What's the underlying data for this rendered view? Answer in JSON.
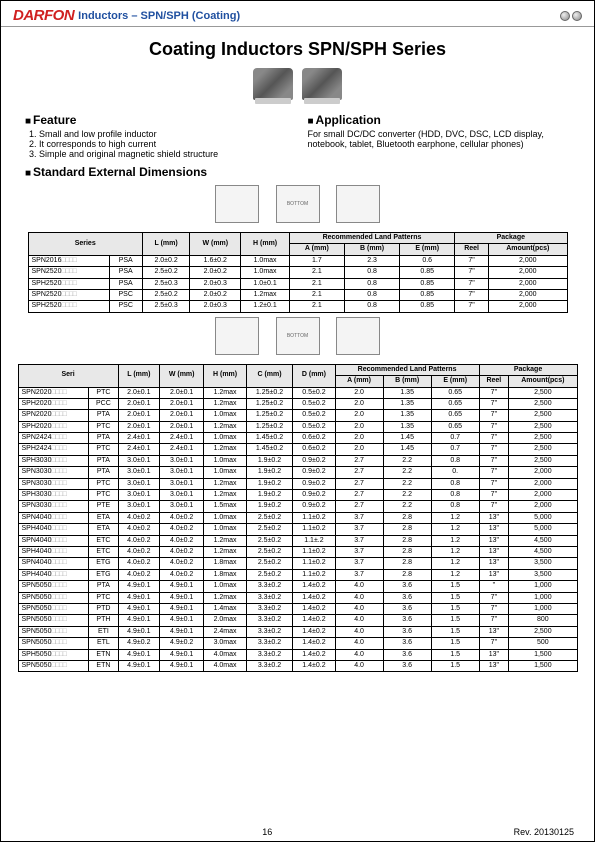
{
  "header": {
    "logo": "DARFON",
    "title": "Inductors – SPN/SPH (Coating)"
  },
  "mainTitle": "Coating Inductors SPN/SPH Series",
  "feature": {
    "heading": "Feature",
    "items": [
      "1. Small and low profile inductor",
      "2. It corresponds to high current",
      "3. Simple and original magnetic shield structure"
    ]
  },
  "application": {
    "heading": "Application",
    "text": "For small DC/DC converter (HDD, DVC, DSC, LCD display, notebook, tablet, Bluetooth earphone, cellular phones)"
  },
  "stdDim": "Standard External Dimensions",
  "table1": {
    "headerGroups": {
      "series": "Series",
      "l": "L\n(mm)",
      "w": "W\n(mm)",
      "h": "H\n(mm)",
      "rlp": "Recommended Land Patterns",
      "a": "A\n(mm)",
      "b": "B\n(mm)",
      "e": "E\n(mm)",
      "pkg": "Package",
      "reel": "Reel",
      "amount": "Amount(pcs)"
    },
    "rows": [
      {
        "series": "SPN2016",
        "suffix": "PSA",
        "l": "2.0±0.2",
        "w": "1.6±0.2",
        "h": "1.0max",
        "a": "1.7",
        "b": "2.3",
        "e": "0.6",
        "reel": "7\"",
        "amount": "2,000"
      },
      {
        "series": "SPN2520",
        "suffix": "PSA",
        "l": "2.5±0.2",
        "w": "2.0±0.2",
        "h": "1.0max",
        "a": "2.1",
        "b": "0.8",
        "e": "0.85",
        "reel": "7\"",
        "amount": "2,000"
      },
      {
        "series": "SPH2520",
        "suffix": "PSA",
        "l": "2.5±0.3",
        "w": "2.0±0.3",
        "h": "1.0±0.1",
        "a": "2.1",
        "b": "0.8",
        "e": "0.85",
        "reel": "7\"",
        "amount": "2,000"
      },
      {
        "series": "SPN2520",
        "suffix": "PSC",
        "l": "2.5±0.2",
        "w": "2.0±0.2",
        "h": "1.2max",
        "a": "2.1",
        "b": "0.8",
        "e": "0.85",
        "reel": "7\"",
        "amount": "2,000"
      },
      {
        "series": "SPH2520",
        "suffix": "PSC",
        "l": "2.5±0.3",
        "w": "2.0±0.3",
        "h": "1.2±0.1",
        "a": "2.1",
        "b": "0.8",
        "e": "0.85",
        "reel": "7\"",
        "amount": "2,000"
      }
    ]
  },
  "table2": {
    "headerGroups": {
      "seri": "Seri",
      "l": "L\n(mm)",
      "w": "W\n(mm)",
      "h": "H\n(mm)",
      "c": "C\n(mm)",
      "d": "D\n(mm)",
      "rlp": "Recommended Land\nPatterns",
      "a": "A\n(mm)",
      "b": "B\n(mm)",
      "e": "E\n(mm)",
      "pkg": "Package",
      "reel": "Reel",
      "amount": "Amount(pcs)"
    },
    "rows": [
      {
        "series": "SPN2020",
        "suffix": "PTC",
        "l": "2.0±0.1",
        "w": "2.0±0.1",
        "h": "1.2max",
        "c": "1.25±0.2",
        "d": "0.5±0.2",
        "a": "2.0",
        "b": "1.35",
        "e": "0.65",
        "reel": "7\"",
        "amount": "2,500"
      },
      {
        "series": "SPH2020",
        "suffix": "PCC",
        "l": "2.0±0.1",
        "w": "2.0±0.1",
        "h": "1.2max",
        "c": "1.25±0.2",
        "d": "0.5±0.2",
        "a": "2.0",
        "b": "1.35",
        "e": "0.65",
        "reel": "7\"",
        "amount": "2,500"
      },
      {
        "series": "SPN2020",
        "suffix": "PTA",
        "l": "2.0±0.1",
        "w": "2.0±0.1",
        "h": "1.0max",
        "c": "1.25±0.2",
        "d": "0.5±0.2",
        "a": "2.0",
        "b": "1.35",
        "e": "0.65",
        "reel": "7\"",
        "amount": "2,500"
      },
      {
        "series": "SPH2020",
        "suffix": "PTC",
        "l": "2.0±0.1",
        "w": "2.0±0.1",
        "h": "1.2max",
        "c": "1.25±0.2",
        "d": "0.5±0.2",
        "a": "2.0",
        "b": "1.35",
        "e": "0.65",
        "reel": "7\"",
        "amount": "2,500"
      },
      {
        "series": "SPN2424",
        "suffix": "PTA",
        "l": "2.4±0.1",
        "w": "2.4±0.1",
        "h": "1.0max",
        "c": "1.45±0.2",
        "d": "0.6±0.2",
        "a": "2.0",
        "b": "1.45",
        "e": "0.7",
        "reel": "7\"",
        "amount": "2,500"
      },
      {
        "series": "SPH2424",
        "suffix": "PTC",
        "l": "2.4±0.1",
        "w": "2.4±0.1",
        "h": "1.2max",
        "c": "1.45±0.2",
        "d": "0.6±0.2",
        "a": "2.0",
        "b": "1.45",
        "e": "0.7",
        "reel": "7\"",
        "amount": "2,500"
      },
      {
        "series": "SPH3030",
        "suffix": "PTA",
        "l": "3.0±0.1",
        "w": "3.0±0.1",
        "h": "1.0max",
        "c": "1.9±0.2",
        "d": "0.9±0.2",
        "a": "2.7",
        "b": "2.2",
        "e": "0.8",
        "reel": "7\"",
        "amount": "2,500"
      },
      {
        "series": "SPN3030",
        "suffix": "PTA",
        "l": "3.0±0.1",
        "w": "3.0±0.1",
        "h": "1.0max",
        "c": "1.9±0.2",
        "d": "0.9±0.2",
        "a": "2.7",
        "b": "2.2",
        "e": "0.",
        "reel": "7\"",
        "amount": "2,000"
      },
      {
        "series": "SPN3030",
        "suffix": "PTC",
        "l": "3.0±0.1",
        "w": "3.0±0.1",
        "h": "1.2max",
        "c": "1.9±0.2",
        "d": "0.9±0.2",
        "a": "2.7",
        "b": "2.2",
        "e": "0.8",
        "reel": "7\"",
        "amount": "2,000"
      },
      {
        "series": "SPH3030",
        "suffix": "PTC",
        "l": "3.0±0.1",
        "w": "3.0±0.1",
        "h": "1.2max",
        "c": "1.9±0.2",
        "d": "0.9±0.2",
        "a": "2.7",
        "b": "2.2",
        "e": "0.8",
        "reel": "7\"",
        "amount": "2,000"
      },
      {
        "series": "SPN3030",
        "suffix": "PTE",
        "l": "3.0±0.1",
        "w": "3.0±0.1",
        "h": "1.5max",
        "c": "1.9±0.2",
        "d": "0.9±0.2",
        "a": "2.7",
        "b": "2.2",
        "e": "0.8",
        "reel": "7\"",
        "amount": "2,000"
      },
      {
        "series": "SPN4040",
        "suffix": "ETA",
        "l": "4.0±0.2",
        "w": "4.0±0.2",
        "h": "1.0max",
        "c": "2.5±0.2",
        "d": "1.1±0.2",
        "a": "3.7",
        "b": "2.8",
        "e": "1.2",
        "reel": "13\"",
        "amount": "5,000"
      },
      {
        "series": "SPH4040",
        "suffix": "ETA",
        "l": "4.0±0.2",
        "w": "4.0±0.2",
        "h": "1.0max",
        "c": "2.5±0.2",
        "d": "1.1±0.2",
        "a": "3.7",
        "b": "2.8",
        "e": "1.2",
        "reel": "13\"",
        "amount": "5,000"
      },
      {
        "series": "SPN4040",
        "suffix": "ETC",
        "l": "4.0±0.2",
        "w": "4.0±0.2",
        "h": "1.2max",
        "c": "2.5±0.2",
        "d": "1.1±.2",
        "a": "3.7",
        "b": "2.8",
        "e": "1.2",
        "reel": "13\"",
        "amount": "4,500"
      },
      {
        "series": "SPH4040",
        "suffix": "ETC",
        "l": "4.0±0.2",
        "w": "4.0±0.2",
        "h": "1.2max",
        "c": "2.5±0.2",
        "d": "1.1±0.2",
        "a": "3.7",
        "b": "2.8",
        "e": "1.2",
        "reel": "13\"",
        "amount": "4,500"
      },
      {
        "series": "SPN4040",
        "suffix": "ETG",
        "l": "4.0±0.2",
        "w": "4.0±0.2",
        "h": "1.8max",
        "c": "2.5±0.2",
        "d": "1.1±0.2",
        "a": "3.7",
        "b": "2.8",
        "e": "1.2",
        "reel": "13\"",
        "amount": "3,500"
      },
      {
        "series": "SPH4040",
        "suffix": "ETG",
        "l": "4.0±0.2",
        "w": "4.0±0.2",
        "h": "1.8max",
        "c": "2.5±0.2",
        "d": "1.1±0.2",
        "a": "3.7",
        "b": "2.8",
        "e": "1.2",
        "reel": "13\"",
        "amount": "3,500"
      },
      {
        "series": "SPN5050",
        "suffix": "PTA",
        "l": "4.9±0.1",
        "w": "4.9±0.1",
        "h": "1.0max",
        "c": "3.3±0.2",
        "d": "1.4±0.2",
        "a": "4.0",
        "b": "3.6",
        "e": "1.5",
        "reel": "\"",
        "amount": "1,000"
      },
      {
        "series": "SPN5050",
        "suffix": "PTC",
        "l": "4.9±0.1",
        "w": "4.9±0.1",
        "h": "1.2max",
        "c": "3.3±0.2",
        "d": "1.4±0.2",
        "a": "4.0",
        "b": "3.6",
        "e": "1.5",
        "reel": "7\"",
        "amount": "1,000"
      },
      {
        "series": "SPN5050",
        "suffix": "PTD",
        "l": "4.9±0.1",
        "w": "4.9±0.1",
        "h": "1.4max",
        "c": "3.3±0.2",
        "d": "1.4±0.2",
        "a": "4.0",
        "b": "3.6",
        "e": "1.5",
        "reel": "7\"",
        "amount": "1,000"
      },
      {
        "series": "SPN5050",
        "suffix": "PTH",
        "l": "4.9±0.1",
        "w": "4.9±0.1",
        "h": "2.0max",
        "c": "3.3±0.2",
        "d": "1.4±0.2",
        "a": "4.0",
        "b": "3.6",
        "e": "1.5",
        "reel": "7\"",
        "amount": "800"
      },
      {
        "series": "SPN5050",
        "suffix": "ETI",
        "l": "4.9±0.1",
        "w": "4.9±0.1",
        "h": "2.4max",
        "c": "3.3±0.2",
        "d": "1.4±0.2",
        "a": "4.0",
        "b": "3.6",
        "e": "1.5",
        "reel": "13\"",
        "amount": "2,500"
      },
      {
        "series": "SPN5050",
        "suffix": "ETL",
        "l": "4.9±0.2",
        "w": "4.9±0.2",
        "h": "3.0max",
        "c": "3.3±0.2",
        "d": "1.4±0.2",
        "a": "4.0",
        "b": "3.6",
        "e": "1.5",
        "reel": "7\"",
        "amount": "500"
      },
      {
        "series": "SPH5050",
        "suffix": "ETN",
        "l": "4.9±0.1",
        "w": "4.9±0.1",
        "h": "4.0max",
        "c": "3.3±0.2",
        "d": "1.4±0.2",
        "a": "4.0",
        "b": "3.6",
        "e": "1.5",
        "reel": "13\"",
        "amount": "1,500"
      },
      {
        "series": "SPN5050",
        "suffix": "ETN",
        "l": "4.9±0.1",
        "w": "4.9±0.1",
        "h": "4.0max",
        "c": "3.3±0.2",
        "d": "1.4±0.2",
        "a": "4.0",
        "b": "3.6",
        "e": "1.5",
        "reel": "13\"",
        "amount": "1,500"
      }
    ]
  },
  "footer": {
    "page": "16",
    "rev": "Rev. 20130125"
  },
  "boxglyph": "□□□□"
}
